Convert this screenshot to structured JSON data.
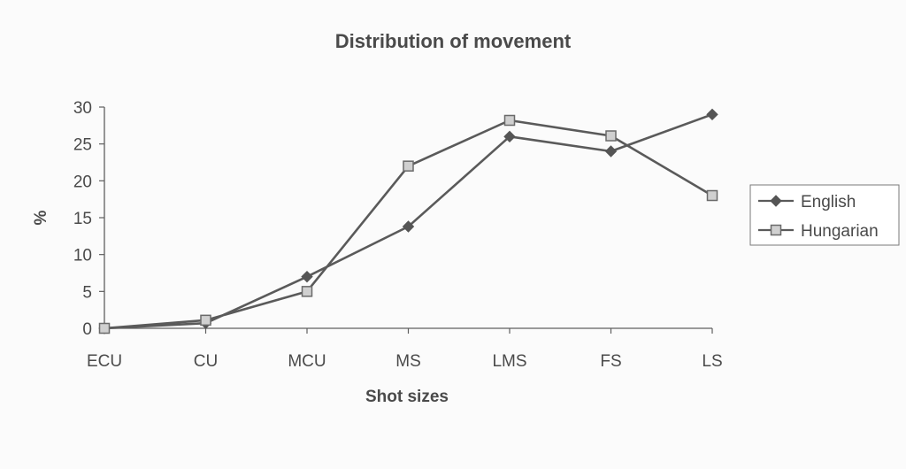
{
  "chart_data": {
    "type": "line",
    "title": "Distribution of movement",
    "xlabel": "Shot sizes",
    "ylabel": "%",
    "categories": [
      "ECU",
      "CU",
      "MCU",
      "MS",
      "LMS",
      "FS",
      "LS"
    ],
    "ylim": [
      0,
      30
    ],
    "yticks": [
      0,
      5,
      10,
      15,
      20,
      25,
      30
    ],
    "grid": false,
    "legend_position": "right",
    "series": [
      {
        "name": "English",
        "marker": "diamond",
        "values": [
          0,
          0.7,
          7,
          13.8,
          26,
          24,
          29
        ]
      },
      {
        "name": "Hungarian",
        "marker": "square",
        "values": [
          0,
          1.1,
          5,
          22,
          28.2,
          26.1,
          18
        ]
      }
    ]
  },
  "colors": {
    "line": "#5a5a5a",
    "axis": "#5f5f5f",
    "english_marker": "#555555",
    "hungarian_marker_fill": "#d0d0d0",
    "hungarian_marker_stroke": "#6a6a6a",
    "legend_border": "#7a7a7a"
  }
}
